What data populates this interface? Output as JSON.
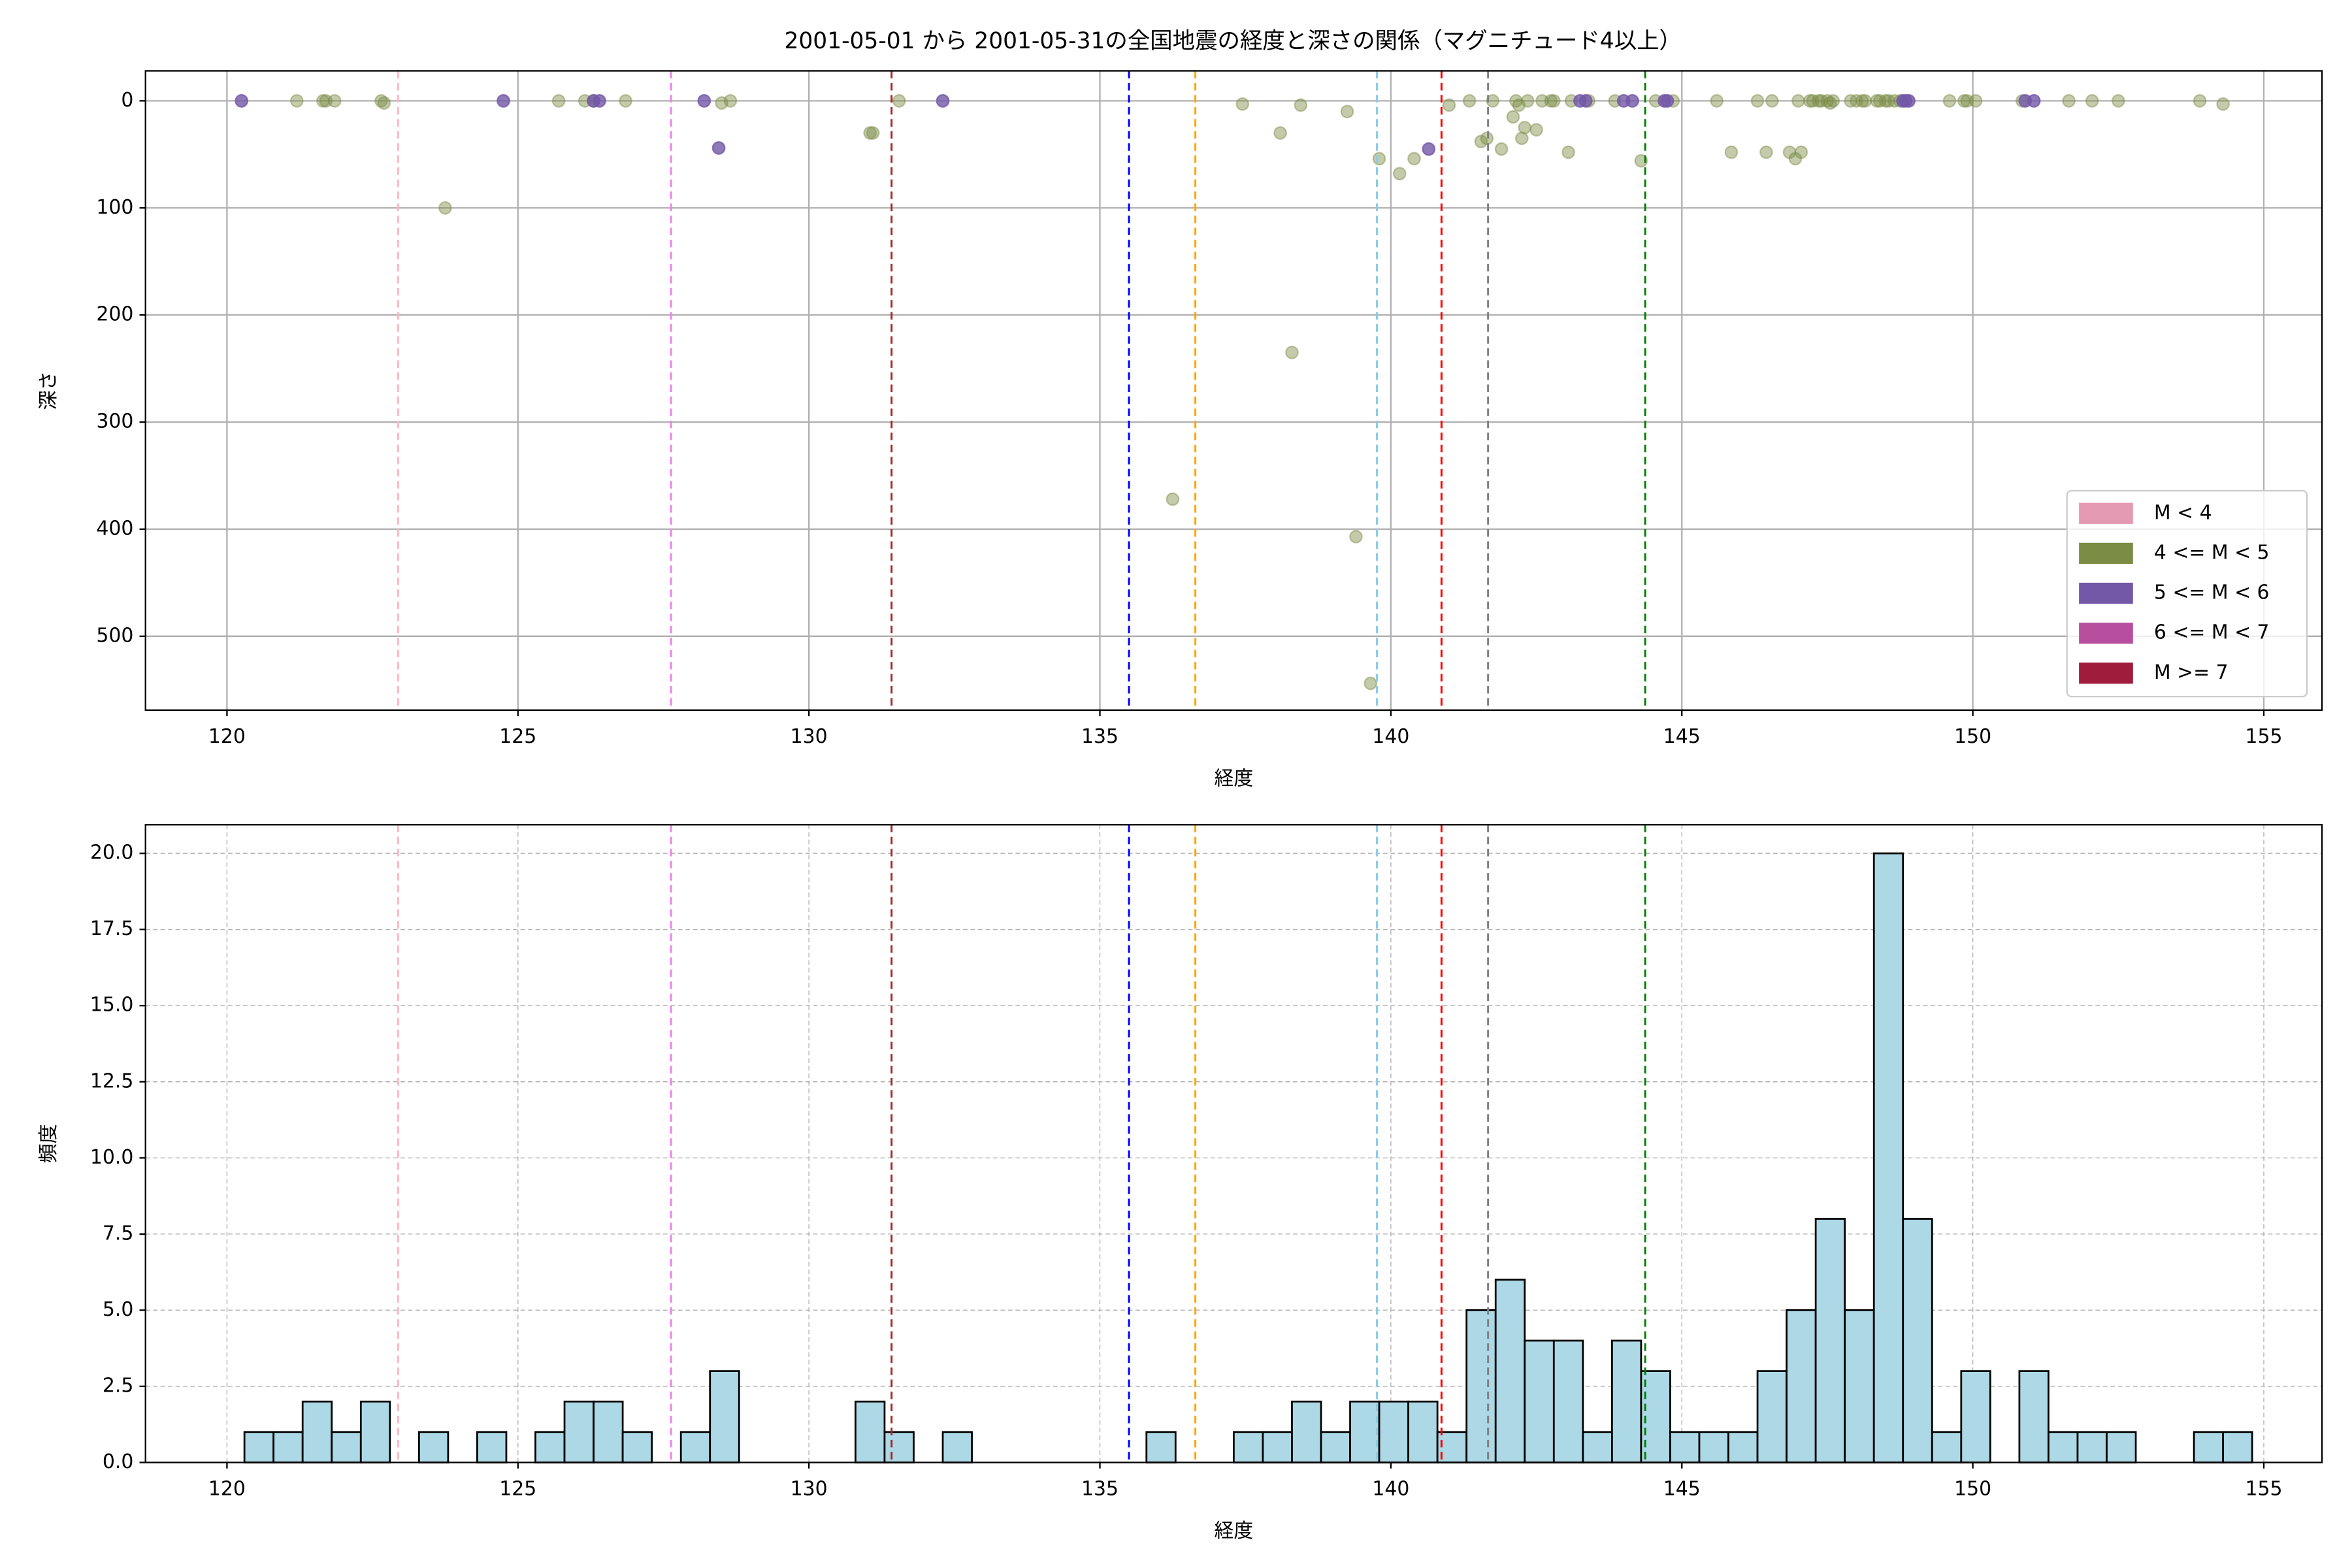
{
  "chart_data": [
    {
      "type": "scatter",
      "title": "2001-05-01 から 2001-05-31の全国地震の経度と深さの関係（マグニチュード4以上）",
      "x_label": "経度",
      "y_label": "深さ",
      "xlim": [
        118.6,
        156.0
      ],
      "xticks": [
        120,
        125,
        130,
        135,
        140,
        145,
        150,
        155
      ],
      "ylim": [
        -28,
        569
      ],
      "y_inverted": true,
      "yticks": [
        0,
        100,
        200,
        300,
        400,
        500
      ],
      "grid": true,
      "grid_style": "solid",
      "legend": "lower right",
      "vlines": [
        {
          "x": 122.94,
          "color": "#ffb6c1"
        },
        {
          "x": 127.63,
          "color": "#ee82ee"
        },
        {
          "x": 131.42,
          "color": "#a52a2a"
        },
        {
          "x": 135.5,
          "color": "#0000ff"
        },
        {
          "x": 136.64,
          "color": "#ffa500"
        },
        {
          "x": 139.76,
          "color": "#87ceeb"
        },
        {
          "x": 140.87,
          "color": "#ff0000"
        },
        {
          "x": 141.67,
          "color": "#808080"
        },
        {
          "x": 144.37,
          "color": "#008000"
        }
      ],
      "series": [
        {
          "name": "M < 4",
          "color": "#e59ab4",
          "x": [],
          "values": []
        },
        {
          "name": "4 <= M < 5",
          "color": "#7b8c45",
          "x": [
            121.2,
            121.65,
            121.7,
            121.85,
            122.65,
            122.7,
            123.75,
            125.7,
            126.15,
            126.3,
            126.85,
            128.5,
            128.65,
            131.05,
            131.1,
            131.55,
            137.45,
            138.1,
            138.45,
            139.25,
            139.65,
            139.4,
            136.25,
            138.3,
            139.8,
            140.15,
            140.4,
            141.0,
            141.35,
            141.55,
            141.65,
            141.75,
            141.9,
            142.1,
            142.15,
            142.2,
            142.25,
            142.3,
            142.35,
            142.5,
            142.6,
            142.75,
            142.8,
            143.05,
            143.1,
            143.4,
            143.85,
            144.3,
            144.55,
            144.85,
            145.6,
            145.85,
            146.3,
            146.45,
            146.55,
            146.85,
            146.95,
            147.0,
            147.05,
            147.2,
            147.25,
            147.35,
            147.4,
            147.5,
            147.55,
            147.6,
            147.9,
            148.0,
            148.1,
            148.15,
            148.35,
            148.4,
            148.5,
            148.55,
            148.65,
            148.75,
            149.6,
            149.85,
            149.9,
            150.05,
            150.85,
            151.65,
            152.05,
            152.5,
            153.9,
            154.3
          ],
          "values": [
            0,
            0,
            0,
            0,
            0,
            2,
            100,
            0,
            0,
            0,
            0,
            2,
            0,
            30,
            30,
            0,
            3,
            30,
            4,
            10,
            544,
            407,
            372,
            235,
            54,
            68,
            54,
            4,
            0,
            38,
            35,
            0,
            45,
            15,
            0,
            4,
            35,
            25,
            0,
            27,
            0,
            0,
            0,
            48,
            0,
            0,
            0,
            56,
            0,
            0,
            0,
            48,
            0,
            48,
            0,
            48,
            54,
            0,
            48,
            0,
            0,
            0,
            0,
            0,
            2,
            0,
            0,
            0,
            0,
            0,
            0,
            0,
            0,
            0,
            0,
            0,
            0,
            0,
            0,
            0,
            0,
            0,
            0,
            0,
            0,
            3
          ]
        },
        {
          "name": "5 <= M < 6",
          "color": "#7358a8",
          "x": [
            120.25,
            124.75,
            126.3,
            126.4,
            128.2,
            128.45,
            132.3,
            140.65,
            143.25,
            143.35,
            144.0,
            144.15,
            144.7,
            144.75,
            148.8,
            148.85,
            148.9,
            150.9,
            151.05
          ],
          "values": [
            0,
            0,
            0,
            0,
            0,
            44,
            0,
            45,
            0,
            0,
            0,
            0,
            0,
            0,
            0,
            0,
            0,
            0,
            0
          ]
        },
        {
          "name": "6 <= M < 7",
          "color": "#b84f9e",
          "x": [],
          "values": []
        },
        {
          "name": "M >= 7",
          "color": "#a01c3c",
          "x": [],
          "values": []
        }
      ]
    },
    {
      "type": "histogram",
      "x_label": "経度",
      "y_label": "頻度",
      "color": "#add8e6",
      "edgecolor": "#000000",
      "xlim": [
        118.6,
        156.0
      ],
      "xticks": [
        120,
        125,
        130,
        135,
        140,
        145,
        150,
        155
      ],
      "ylim": [
        0,
        20.94
      ],
      "yticks": [
        {
          "value": 0,
          "label": "0.0"
        },
        2.5,
        {
          "value": 5,
          "label": "5.0"
        },
        7.5,
        {
          "value": 10,
          "label": "10.0"
        },
        12.5,
        {
          "value": 15,
          "label": "15.0"
        },
        17.5,
        {
          "value": 20,
          "label": "20.0"
        }
      ],
      "grid": true,
      "grid_style": "dashed",
      "vlines": [
        {
          "x": 122.94,
          "color": "#ffb6c1"
        },
        {
          "x": 127.63,
          "color": "#ee82ee"
        },
        {
          "x": 131.42,
          "color": "#a52a2a"
        },
        {
          "x": 135.5,
          "color": "#0000ff"
        },
        {
          "x": 136.64,
          "color": "#ffa500"
        },
        {
          "x": 139.76,
          "color": "#87ceeb"
        },
        {
          "x": 140.87,
          "color": "#ff0000"
        },
        {
          "x": 141.67,
          "color": "#808080"
        },
        {
          "x": 144.37,
          "color": "#008000"
        }
      ],
      "bins": [
        120.3,
        120.8,
        121.3,
        121.8,
        122.3,
        122.8,
        123.3,
        123.8,
        124.3,
        124.8,
        125.3,
        125.8,
        126.3,
        126.8,
        127.3,
        127.8,
        128.3,
        128.8,
        129.3,
        129.8,
        130.3,
        130.8,
        131.3,
        131.8,
        132.3,
        132.8,
        133.3,
        133.8,
        134.3,
        134.8,
        135.3,
        135.8,
        136.3,
        136.8,
        137.3,
        137.8,
        138.3,
        138.8,
        139.3,
        139.8,
        140.3,
        140.8,
        141.3,
        141.8,
        142.3,
        142.8,
        143.3,
        143.8,
        144.3,
        144.8,
        145.3,
        145.8,
        146.3,
        146.8,
        147.3,
        147.8,
        148.3,
        148.8,
        149.3,
        149.8,
        150.3,
        150.8,
        151.3,
        151.8,
        152.3,
        152.8,
        153.3,
        153.8,
        154.3,
        154.8
      ],
      "values": [
        1,
        1,
        2,
        1,
        2,
        0,
        1,
        0,
        1,
        0,
        1,
        2,
        2,
        1,
        0,
        1,
        3,
        0,
        0,
        0,
        0,
        2,
        1,
        0,
        1,
        0,
        0,
        0,
        0,
        0,
        0,
        1,
        0,
        0,
        1,
        1,
        2,
        1,
        2,
        2,
        2,
        1,
        5,
        6,
        4,
        4,
        1,
        4,
        3,
        1,
        1,
        1,
        3,
        5,
        8,
        5,
        20,
        8,
        1,
        3,
        0,
        3,
        1,
        1,
        1,
        0,
        0,
        1,
        1
      ]
    }
  ]
}
